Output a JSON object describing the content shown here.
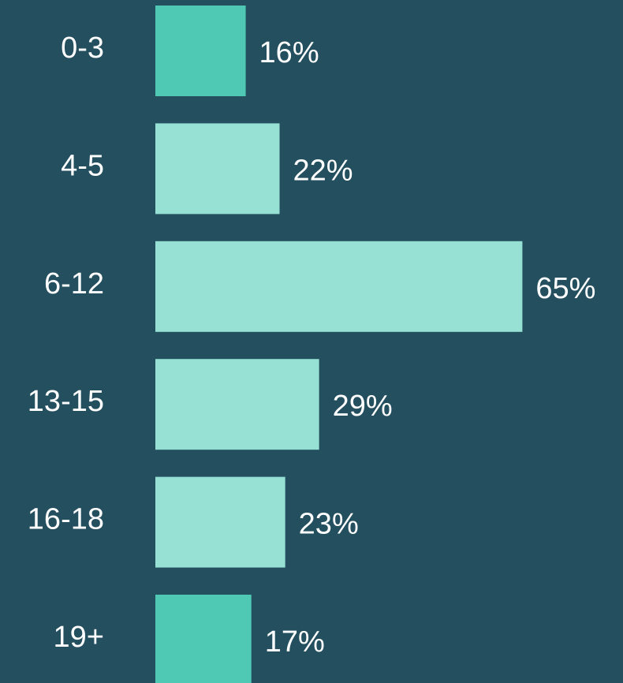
{
  "chart_data": {
    "type": "bar",
    "orientation": "horizontal",
    "categories": [
      "0-3",
      "4-5",
      "6-12",
      "13-15",
      "16-18",
      "19+"
    ],
    "values": [
      16,
      22,
      65,
      29,
      23,
      17
    ],
    "value_labels": [
      "16%",
      "22%",
      "65%",
      "29%",
      "23%",
      "17%"
    ],
    "colors": [
      "#4fc9b4",
      "#96e0d4",
      "#96e0d4",
      "#96e0d4",
      "#96e0d4",
      "#4fc9b4"
    ],
    "background": "#234f5f"
  }
}
